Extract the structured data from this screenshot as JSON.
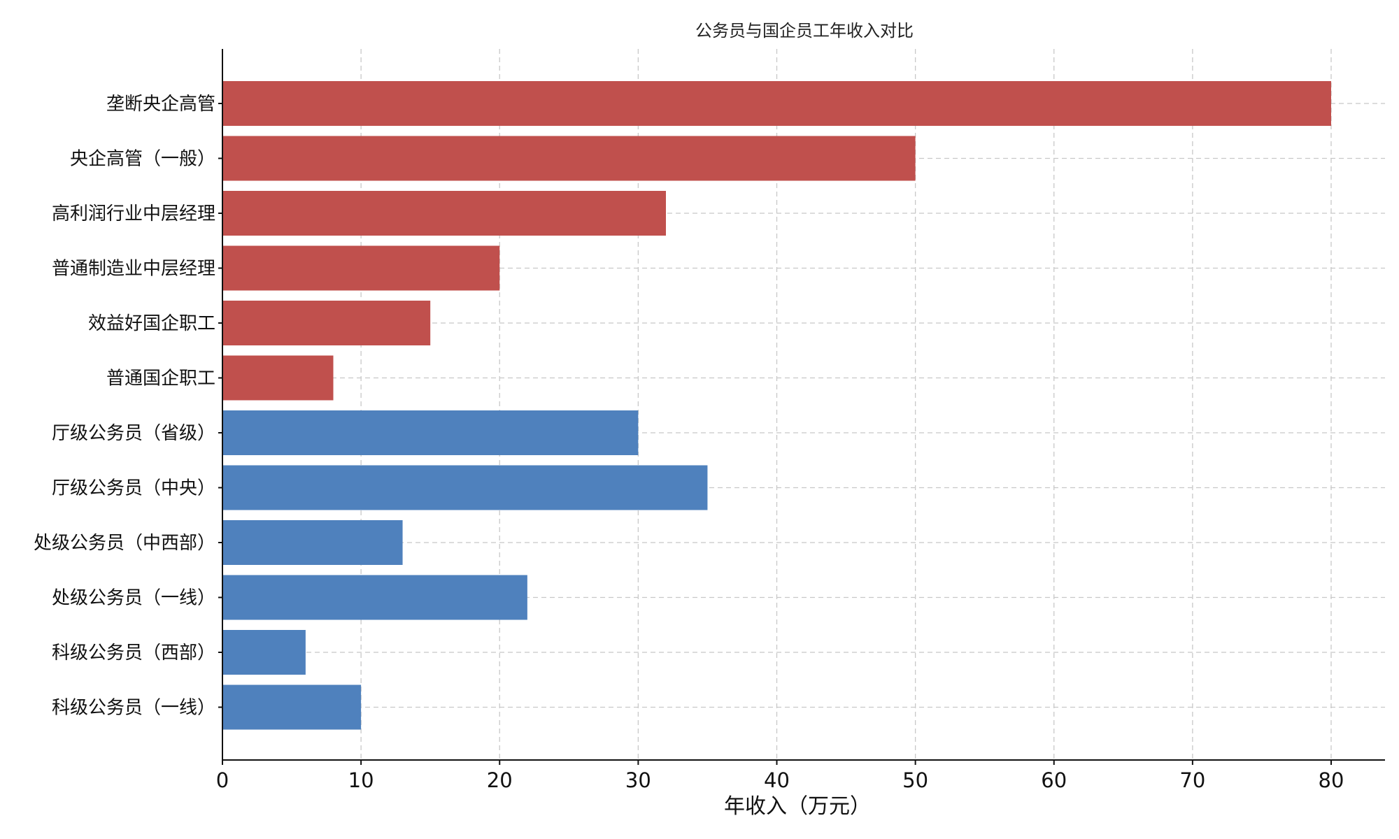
{
  "chart_data": {
    "type": "bar",
    "orientation": "horizontal",
    "title": "公务员与国企员工年收入对比",
    "xlabel": "年收入（万元）",
    "ylabel": "",
    "xlim": [
      0,
      84
    ],
    "xticks": [
      0,
      10,
      20,
      30,
      40,
      50,
      60,
      70,
      80
    ],
    "grid": true,
    "categories": [
      "垄断央企高管",
      "央企高管（一般）",
      "高利润行业中层经理",
      "普通制造业中层经理",
      "效益好国企职工",
      "普通国企职工",
      "厅级公务员（省级）",
      "厅级公务员（中央）",
      "处级公务员（中西部）",
      "处级公务员（一线）",
      "科级公务员（西部）",
      "科级公务员（一线）"
    ],
    "values": [
      80,
      50,
      32,
      20,
      15,
      8,
      30,
      35,
      13,
      22,
      6,
      10
    ],
    "bar_colors": [
      "#c0504d",
      "#c0504d",
      "#c0504d",
      "#c0504d",
      "#c0504d",
      "#c0504d",
      "#4f81bd",
      "#4f81bd",
      "#4f81bd",
      "#4f81bd",
      "#4f81bd",
      "#4f81bd"
    ]
  }
}
